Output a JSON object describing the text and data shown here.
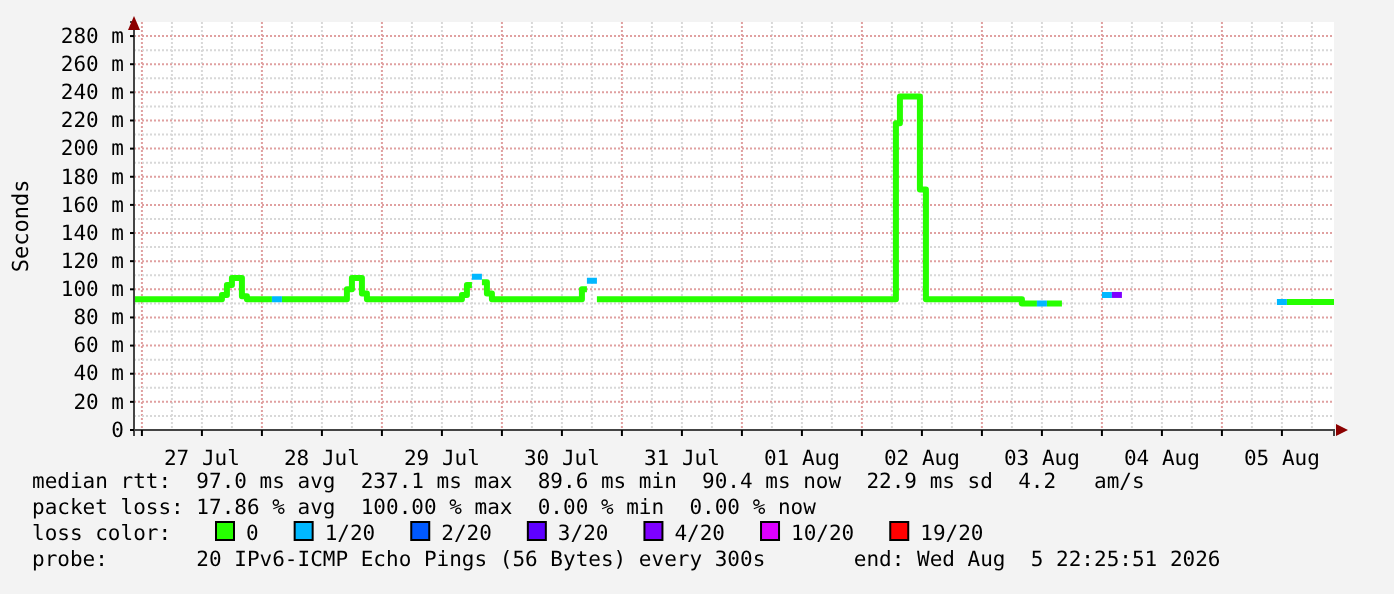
{
  "chart_data": {
    "type": "line",
    "ylabel": "Seconds",
    "xlim": [
      "2026-07-26T22:25",
      "2026-08-05T22:25"
    ],
    "xticks": [
      {
        "value": "2026-07-27T00:00",
        "label": null
      },
      {
        "value": "2026-07-27T12:00",
        "label": "27 Jul"
      },
      {
        "value": "2026-07-28T00:00",
        "label": null
      },
      {
        "value": "2026-07-28T12:00",
        "label": "28 Jul"
      },
      {
        "value": "2026-07-29T00:00",
        "label": null
      },
      {
        "value": "2026-07-29T12:00",
        "label": "29 Jul"
      },
      {
        "value": "2026-07-30T00:00",
        "label": null
      },
      {
        "value": "2026-07-30T12:00",
        "label": "30 Jul"
      },
      {
        "value": "2026-07-31T00:00",
        "label": null
      },
      {
        "value": "2026-07-31T12:00",
        "label": "31 Jul"
      },
      {
        "value": "2026-08-01T00:00",
        "label": null
      },
      {
        "value": "2026-08-01T12:00",
        "label": "01 Aug"
      },
      {
        "value": "2026-08-02T00:00",
        "label": null
      },
      {
        "value": "2026-08-02T12:00",
        "label": "02 Aug"
      },
      {
        "value": "2026-08-03T00:00",
        "label": null
      },
      {
        "value": "2026-08-03T12:00",
        "label": "03 Aug"
      },
      {
        "value": "2026-08-04T00:00",
        "label": null
      },
      {
        "value": "2026-08-04T12:00",
        "label": "04 Aug"
      },
      {
        "value": "2026-08-05T00:00",
        "label": null
      },
      {
        "value": "2026-08-05T12:00",
        "label": "05 Aug"
      }
    ],
    "ylim": [
      0,
      290
    ],
    "yticks": [
      0,
      {
        "value": 20,
        "label": "20 m"
      },
      {
        "value": 40,
        "label": "40 m"
      },
      {
        "value": 60,
        "label": "60 m"
      },
      {
        "value": 80,
        "label": "80 m"
      },
      {
        "value": 100,
        "label": "100 m"
      },
      {
        "value": 120,
        "label": "120 m"
      },
      {
        "value": 140,
        "label": "140 m"
      },
      {
        "value": 160,
        "label": "160 m"
      },
      {
        "value": 180,
        "label": "180 m"
      },
      {
        "value": 200,
        "label": "200 m"
      },
      {
        "value": 220,
        "label": "220 m"
      },
      {
        "value": 240,
        "label": "240 m"
      },
      {
        "value": 260,
        "label": "260 m"
      },
      {
        "value": 280,
        "label": "280 m"
      }
    ],
    "grid": true,
    "legend": "bottom",
    "legend_title": "loss color:",
    "series": [
      {
        "name": "0",
        "color": "#26ff00",
        "x": [
          "2026-07-26T22:25",
          "2026-07-27T16:00",
          "2026-07-27T16:00",
          "2026-07-27T17:00",
          "2026-07-27T17:00",
          "2026-07-27T18:00",
          "2026-07-27T18:00",
          "2026-07-27T20:00",
          "2026-07-27T20:00",
          "2026-07-27T21:00",
          "2026-07-27T21:00",
          "2026-07-28T02:00",
          "2026-07-28T03:00",
          "2026-07-28T04:00",
          "2026-07-28T17:00",
          "2026-07-28T17:00",
          "2026-07-28T18:00",
          "2026-07-28T18:00",
          "2026-07-28T20:00",
          "2026-07-28T20:00",
          "2026-07-28T21:00",
          "2026-07-28T21:00",
          "2026-07-29T16:00",
          "2026-07-29T16:00",
          "2026-07-29T17:00",
          "2026-07-29T17:00",
          "2026-07-29T18:00",
          "2026-07-29T18:30",
          "2026-07-29T20:00",
          "2026-07-29T21:00",
          "2026-07-29T21:00",
          "2026-07-29T22:00",
          "2026-07-29T22:00",
          "2026-07-30T16:00",
          "2026-07-30T16:00",
          "2026-07-30T17:00",
          "2026-07-30T17:30",
          "2026-07-30T19:00",
          "2026-08-02T06:48",
          "2026-08-02T06:48",
          "2026-08-02T07:36",
          "2026-08-02T07:36",
          "2026-08-02T11:36",
          "2026-08-02T11:36",
          "2026-08-02T12:48",
          "2026-08-02T12:48",
          "2026-08-03T08:00",
          "2026-08-03T08:00",
          "2026-08-03T11:00",
          "2026-08-03T12:00",
          "2026-08-03T13:00",
          "2026-08-03T16:00",
          "2026-08-04T12:00",
          "2026-08-05T13:00",
          "2026-08-05T22:25"
        ],
        "values": [
          93,
          93,
          96,
          96,
          103,
          103,
          108,
          108,
          95,
          95,
          93,
          93,
          null,
          93,
          93,
          100,
          100,
          108,
          108,
          97,
          97,
          93,
          93,
          96,
          96,
          103,
          103,
          null,
          105,
          105,
          97,
          97,
          93,
          93,
          100,
          100,
          null,
          93,
          93,
          218,
          218,
          237,
          237,
          171,
          171,
          93,
          93,
          90,
          90,
          null,
          90,
          90,
          null,
          91,
          91
        ]
      },
      {
        "name": "1/20",
        "color": "#00b8ff",
        "x": [
          "2026-07-28T02:00",
          "2026-07-28T04:00",
          "2026-07-28T12:00",
          "2026-07-29T18:00",
          "2026-07-29T20:00",
          "2026-07-30T00:00",
          "2026-07-30T17:00",
          "2026-07-30T19:00",
          "2026-08-01T00:00",
          "2026-08-03T11:00",
          "2026-08-03T13:00",
          "2026-08-03T20:00",
          "2026-08-04T00:00",
          "2026-08-04T02:00",
          "2026-08-04T12:00",
          "2026-08-05T11:00",
          "2026-08-05T13:00"
        ],
        "values": [
          93,
          93,
          null,
          109,
          109,
          null,
          106,
          106,
          null,
          90,
          90,
          null,
          96,
          96,
          null,
          91,
          91
        ]
      },
      {
        "name": "2/20",
        "color": "#0059ff"
      },
      {
        "name": "3/20",
        "color": "#5e00ff"
      },
      {
        "name": "4/20",
        "color": "#7e00ff",
        "x": [
          "2026-08-04T02:00",
          "2026-08-04T04:00"
        ],
        "values": [
          96,
          96
        ]
      },
      {
        "name": "10/20",
        "color": "#dd00ff"
      },
      {
        "name": "19/20",
        "color": "#ff0000"
      }
    ],
    "annotations": [
      "median rtt:  97.0 ms avg  237.1 ms max  89.6 ms min  90.4 ms now  22.9 ms sd  4.2   am/s",
      "packet loss: 17.86 % avg  100.00 % max  0.00 % min  0.00 % now",
      "probe:       20 IPv6-ICMP Echo Pings (56 Bytes) every 300s       end: Wed Aug  5 22:25:51 2026"
    ]
  }
}
